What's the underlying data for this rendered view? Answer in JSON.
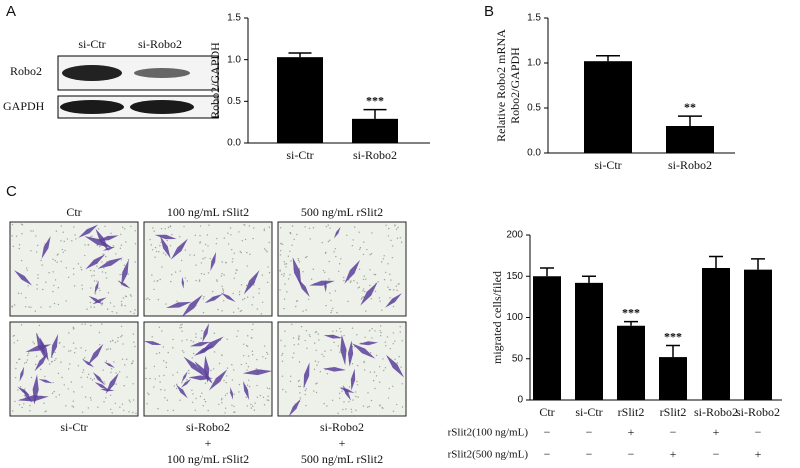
{
  "panels": [
    "A",
    "B",
    "C"
  ],
  "blot": {
    "lanes": [
      "si-Ctr",
      "si-Robo2"
    ],
    "rows": [
      "Robo2",
      "GAPDH"
    ]
  },
  "images": {
    "top_labels": [
      "Ctr",
      "100 ng/mL rSlit2",
      "500 ng/mL rSlit2"
    ],
    "bottom_labels": [
      [
        "si-Ctr"
      ],
      [
        "si-Robo2",
        "+",
        "100 ng/mL rSlit2"
      ],
      [
        "si-Robo2",
        "+",
        "500 ng/mL rSlit2"
      ]
    ]
  },
  "chart_data": [
    {
      "type": "bar",
      "ylabel": "Robo2/GAPDH",
      "categories": [
        "si-Ctr",
        "si-Robo2"
      ],
      "values": [
        1.03,
        0.29
      ],
      "errors": [
        0.05,
        0.11
      ],
      "significance": [
        null,
        "***"
      ],
      "color": "#000000",
      "ylim": [
        0,
        1.5
      ],
      "yticks": [
        {
          "value": 0,
          "label": "0.0"
        },
        {
          "value": 0.5,
          "label": "0.5"
        },
        {
          "value": 1,
          "label": "1.0"
        },
        {
          "value": 1.5,
          "label": "1.5"
        }
      ]
    },
    {
      "type": "bar",
      "ylabel": [
        "Relative Robo2 mRNA",
        "Robo2/GAPDH"
      ],
      "categories": [
        "si-Ctr",
        "si-Robo2"
      ],
      "values": [
        1.02,
        0.3
      ],
      "errors": [
        0.06,
        0.11
      ],
      "significance": [
        null,
        "**"
      ],
      "color": "#000000",
      "ylim": [
        0,
        1.5
      ],
      "yticks": [
        {
          "value": 0,
          "label": "0.0"
        },
        {
          "value": 0.5,
          "label": "0.5"
        },
        {
          "value": 1,
          "label": "1.0"
        },
        {
          "value": 1.5,
          "label": "1.5"
        }
      ]
    },
    {
      "type": "bar",
      "ylabel": "migrated cells/filed",
      "categories": [
        "Ctr",
        "si-Ctr",
        "rSlit2",
        "rSlit2",
        "si-Robo2",
        "si-Robo2"
      ],
      "values": [
        150,
        142,
        90,
        52,
        160,
        158
      ],
      "errors": [
        10,
        8,
        5,
        14,
        14,
        13
      ],
      "significance": [
        null,
        null,
        "***",
        "***",
        null,
        null
      ],
      "color": "#000000",
      "ylim": [
        0,
        200
      ],
      "yticks": [
        0,
        50,
        100,
        150,
        200
      ],
      "treatments": [
        {
          "name": "rSlit2(100 ng/mL)",
          "signs": [
            "−",
            "−",
            "+",
            "−",
            "+",
            "−"
          ]
        },
        {
          "name": "rSlit2(500 ng/mL)",
          "signs": [
            "−",
            "−",
            "−",
            "+",
            "−",
            "+"
          ]
        }
      ]
    }
  ]
}
